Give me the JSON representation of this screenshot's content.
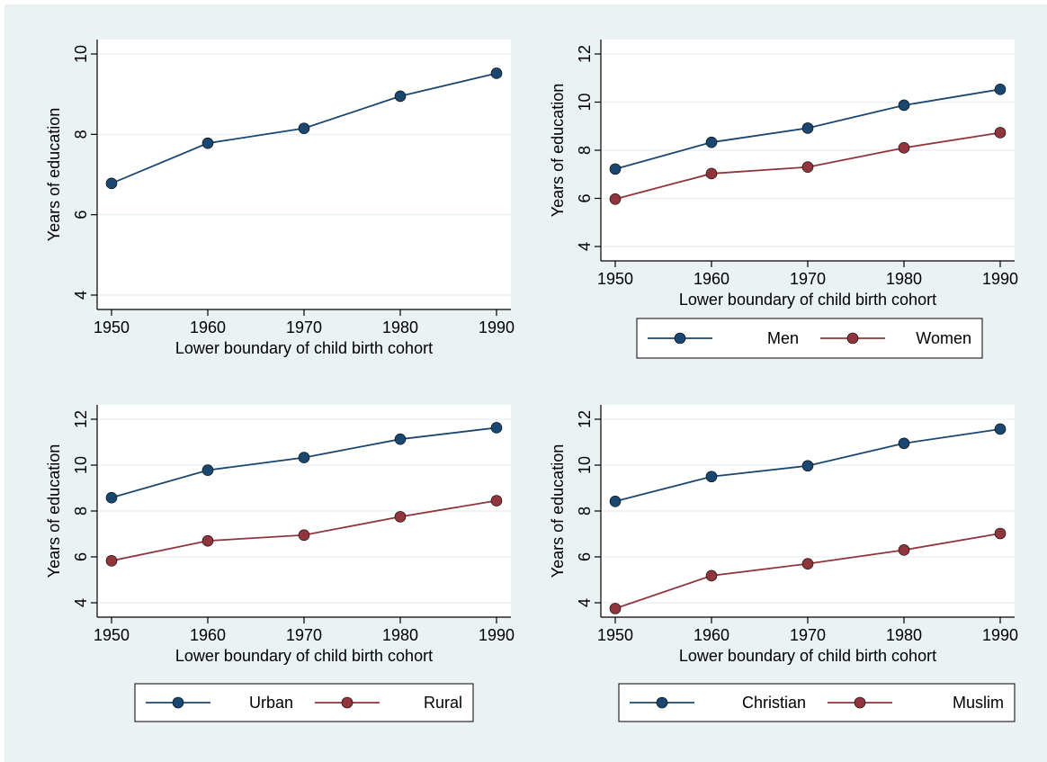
{
  "background_color": "#eaf2f3",
  "chart_data": [
    {
      "type": "line",
      "x": [
        1950,
        1960,
        1970,
        1980,
        1990
      ],
      "xlim": [
        1950,
        1990
      ],
      "ylim": [
        4,
        10
      ],
      "xticks": [
        1950,
        1960,
        1970,
        1980,
        1990
      ],
      "yticks": [
        4,
        6,
        8,
        10
      ],
      "xlabel": "Lower boundary of child birth cohort",
      "ylabel": "Years of education",
      "grid": true,
      "legend": null,
      "series": [
        {
          "values": [
            6.78,
            7.78,
            8.15,
            8.95,
            9.52
          ],
          "color": "#1a476f"
        }
      ]
    },
    {
      "type": "line",
      "x": [
        1950,
        1960,
        1970,
        1980,
        1990
      ],
      "xlim": [
        1950,
        1990
      ],
      "ylim": [
        4,
        12
      ],
      "xticks": [
        1950,
        1960,
        1970,
        1980,
        1990
      ],
      "yticks": [
        4,
        6,
        8,
        10,
        12
      ],
      "xlabel": "Lower boundary of child birth cohort",
      "ylabel": "Years of education",
      "grid": true,
      "legend": "bottom",
      "series": [
        {
          "name": "Men",
          "values": [
            7.22,
            8.33,
            8.92,
            9.87,
            10.53
          ],
          "color": "#1a476f"
        },
        {
          "name": "Women",
          "values": [
            5.97,
            7.03,
            7.3,
            8.1,
            8.73
          ],
          "color": "#90353b"
        }
      ]
    },
    {
      "type": "line",
      "x": [
        1950,
        1960,
        1970,
        1980,
        1990
      ],
      "xlim": [
        1950,
        1990
      ],
      "ylim": [
        4,
        12
      ],
      "xticks": [
        1950,
        1960,
        1970,
        1980,
        1990
      ],
      "yticks": [
        4,
        6,
        8,
        10,
        12
      ],
      "xlabel": "Lower boundary of child birth cohort",
      "ylabel": "Years of education",
      "grid": true,
      "legend": "bottom",
      "series": [
        {
          "name": "Urban",
          "values": [
            8.58,
            9.78,
            10.33,
            11.13,
            11.63
          ],
          "color": "#1a476f"
        },
        {
          "name": "Rural",
          "values": [
            5.83,
            6.7,
            6.95,
            7.75,
            8.45
          ],
          "color": "#90353b"
        }
      ]
    },
    {
      "type": "line",
      "x": [
        1950,
        1960,
        1970,
        1980,
        1990
      ],
      "xlim": [
        1950,
        1990
      ],
      "ylim": [
        4,
        12
      ],
      "xticks": [
        1950,
        1960,
        1970,
        1980,
        1990
      ],
      "yticks": [
        4,
        6,
        8,
        10,
        12
      ],
      "xlabel": "Lower boundary of child birth cohort",
      "ylabel": "Years of education",
      "grid": true,
      "legend": "bottom",
      "series": [
        {
          "name": "Christian",
          "values": [
            8.42,
            9.5,
            9.97,
            10.95,
            11.57
          ],
          "color": "#1a476f"
        },
        {
          "name": "Muslim",
          "values": [
            3.75,
            5.18,
            5.7,
            6.3,
            7.02
          ],
          "color": "#90353b"
        }
      ]
    }
  ]
}
